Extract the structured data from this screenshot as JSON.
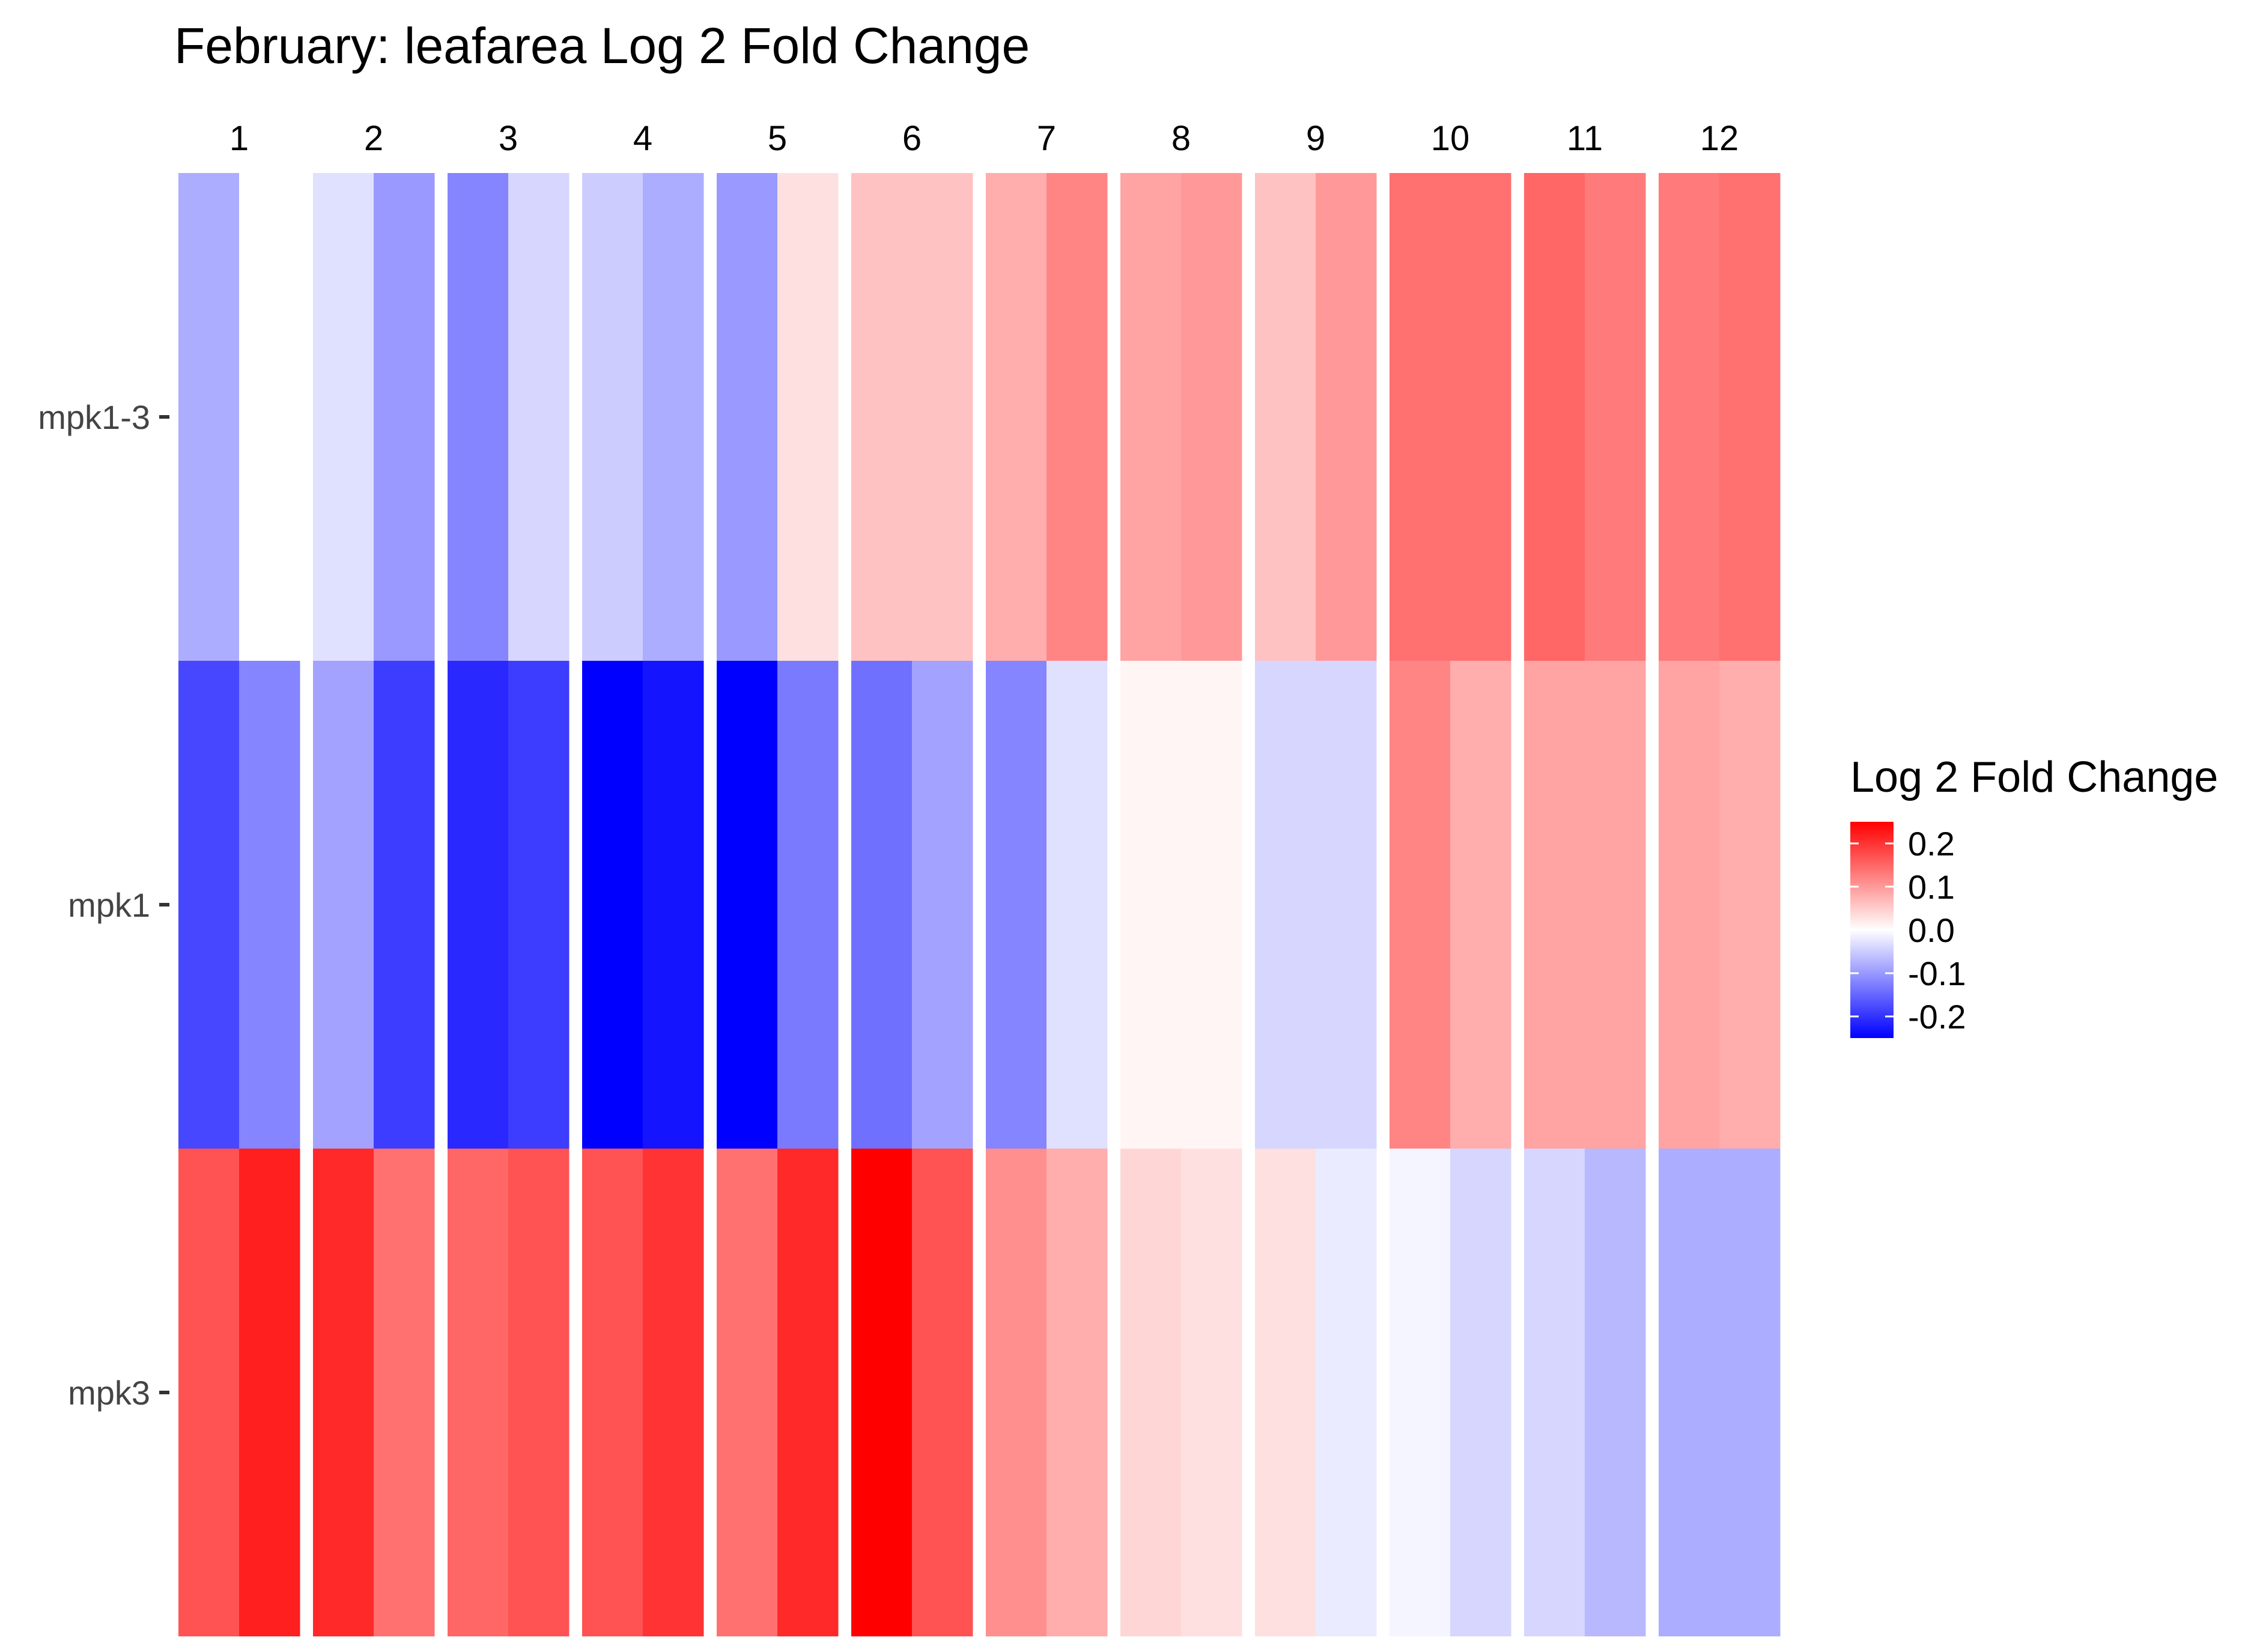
{
  "chart_data": {
    "type": "heatmap",
    "title": "February: leafarea Log 2 Fold Change",
    "columns": [
      "1",
      "2",
      "3",
      "4",
      "5",
      "6",
      "7",
      "8",
      "9",
      "10",
      "11",
      "12"
    ],
    "rows": [
      "mpk1-3",
      "mpk1",
      "mpk3"
    ],
    "sub_columns_per_column": 2,
    "values": [
      [
        -0.08,
        0.0,
        -0.03,
        -0.1,
        -0.12,
        -0.04,
        -0.05,
        -0.08,
        -0.1,
        0.03,
        0.06,
        0.06,
        0.08,
        0.12,
        0.09,
        0.1,
        0.06,
        0.1,
        0.14,
        0.14,
        0.15,
        0.13,
        0.13,
        0.14
      ],
      [
        -0.18,
        -0.12,
        -0.09,
        -0.19,
        -0.21,
        -0.19,
        -0.25,
        -0.23,
        -0.25,
        -0.13,
        -0.14,
        -0.09,
        -0.12,
        -0.03,
        0.01,
        0.01,
        -0.04,
        -0.04,
        0.12,
        0.08,
        0.09,
        0.09,
        0.09,
        0.08
      ],
      [
        0.17,
        0.22,
        0.21,
        0.14,
        0.15,
        0.17,
        0.17,
        0.2,
        0.14,
        0.21,
        0.25,
        0.17,
        0.11,
        0.08,
        0.04,
        0.03,
        0.03,
        -0.02,
        -0.01,
        -0.04,
        -0.04,
        -0.07,
        -0.08,
        -0.08
      ]
    ],
    "scale": {
      "min": -0.25,
      "mid": 0.0,
      "max": 0.25,
      "low_color": "#0000ff",
      "mid_color": "#ffffff",
      "high_color": "#ff0000"
    },
    "legend": {
      "title": "Log 2 Fold Change",
      "ticks": [
        "0.2",
        "0.1",
        "0.0",
        "-0.1",
        "-0.2"
      ],
      "tick_values": [
        0.2,
        0.1,
        0.0,
        -0.1,
        -0.2
      ],
      "placement": "right"
    }
  }
}
